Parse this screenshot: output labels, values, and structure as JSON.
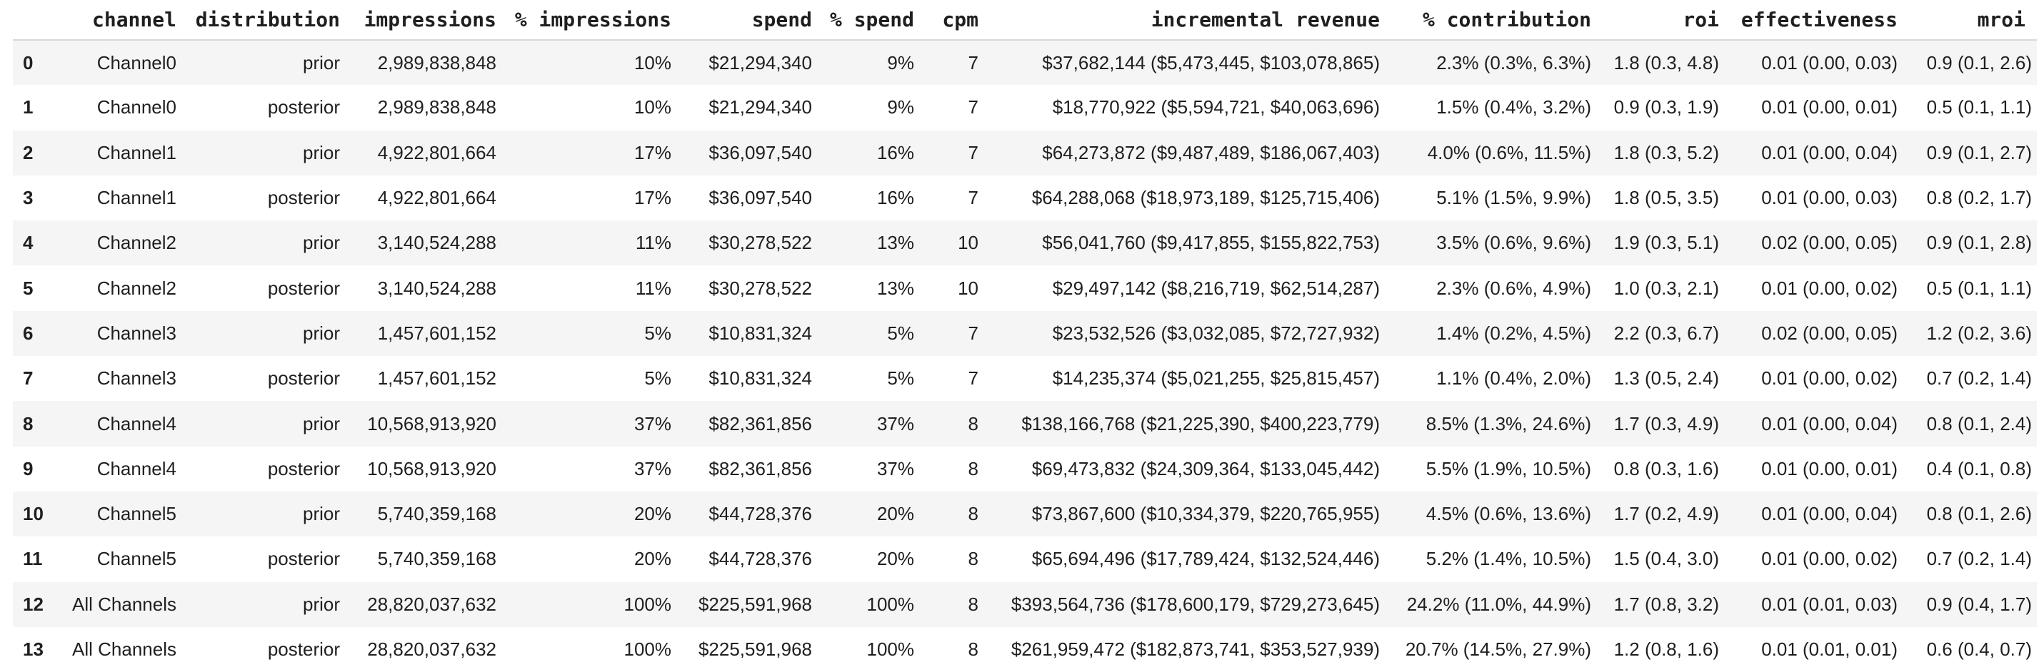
{
  "table": {
    "index_header": "",
    "columns": [
      "channel",
      "distribution",
      "impressions",
      "% impressions",
      "spend",
      "% spend",
      "cpm",
      "incremental revenue",
      "% contribution",
      "roi",
      "effectiveness",
      "mroi"
    ],
    "rows": [
      [
        "0",
        "Channel0",
        "prior",
        "2,989,838,848",
        "10%",
        "$21,294,340",
        "9%",
        "7",
        "$37,682,144 ($5,473,445, $103,078,865)",
        "2.3% (0.3%, 6.3%)",
        "1.8 (0.3, 4.8)",
        "0.01 (0.00, 0.03)",
        "0.9 (0.1, 2.6)"
      ],
      [
        "1",
        "Channel0",
        "posterior",
        "2,989,838,848",
        "10%",
        "$21,294,340",
        "9%",
        "7",
        "$18,770,922 ($5,594,721, $40,063,696)",
        "1.5% (0.4%, 3.2%)",
        "0.9 (0.3, 1.9)",
        "0.01 (0.00, 0.01)",
        "0.5 (0.1, 1.1)"
      ],
      [
        "2",
        "Channel1",
        "prior",
        "4,922,801,664",
        "17%",
        "$36,097,540",
        "16%",
        "7",
        "$64,273,872 ($9,487,489, $186,067,403)",
        "4.0% (0.6%, 11.5%)",
        "1.8 (0.3, 5.2)",
        "0.01 (0.00, 0.04)",
        "0.9 (0.1, 2.7)"
      ],
      [
        "3",
        "Channel1",
        "posterior",
        "4,922,801,664",
        "17%",
        "$36,097,540",
        "16%",
        "7",
        "$64,288,068 ($18,973,189, $125,715,406)",
        "5.1% (1.5%, 9.9%)",
        "1.8 (0.5, 3.5)",
        "0.01 (0.00, 0.03)",
        "0.8 (0.2, 1.7)"
      ],
      [
        "4",
        "Channel2",
        "prior",
        "3,140,524,288",
        "11%",
        "$30,278,522",
        "13%",
        "10",
        "$56,041,760 ($9,417,855, $155,822,753)",
        "3.5% (0.6%, 9.6%)",
        "1.9 (0.3, 5.1)",
        "0.02 (0.00, 0.05)",
        "0.9 (0.1, 2.8)"
      ],
      [
        "5",
        "Channel2",
        "posterior",
        "3,140,524,288",
        "11%",
        "$30,278,522",
        "13%",
        "10",
        "$29,497,142 ($8,216,719, $62,514,287)",
        "2.3% (0.6%, 4.9%)",
        "1.0 (0.3, 2.1)",
        "0.01 (0.00, 0.02)",
        "0.5 (0.1, 1.1)"
      ],
      [
        "6",
        "Channel3",
        "prior",
        "1,457,601,152",
        "5%",
        "$10,831,324",
        "5%",
        "7",
        "$23,532,526 ($3,032,085, $72,727,932)",
        "1.4% (0.2%, 4.5%)",
        "2.2 (0.3, 6.7)",
        "0.02 (0.00, 0.05)",
        "1.2 (0.2, 3.6)"
      ],
      [
        "7",
        "Channel3",
        "posterior",
        "1,457,601,152",
        "5%",
        "$10,831,324",
        "5%",
        "7",
        "$14,235,374 ($5,021,255, $25,815,457)",
        "1.1% (0.4%, 2.0%)",
        "1.3 (0.5, 2.4)",
        "0.01 (0.00, 0.02)",
        "0.7 (0.2, 1.4)"
      ],
      [
        "8",
        "Channel4",
        "prior",
        "10,568,913,920",
        "37%",
        "$82,361,856",
        "37%",
        "8",
        "$138,166,768 ($21,225,390, $400,223,779)",
        "8.5% (1.3%, 24.6%)",
        "1.7 (0.3, 4.9)",
        "0.01 (0.00, 0.04)",
        "0.8 (0.1, 2.4)"
      ],
      [
        "9",
        "Channel4",
        "posterior",
        "10,568,913,920",
        "37%",
        "$82,361,856",
        "37%",
        "8",
        "$69,473,832 ($24,309,364, $133,045,442)",
        "5.5% (1.9%, 10.5%)",
        "0.8 (0.3, 1.6)",
        "0.01 (0.00, 0.01)",
        "0.4 (0.1, 0.8)"
      ],
      [
        "10",
        "Channel5",
        "prior",
        "5,740,359,168",
        "20%",
        "$44,728,376",
        "20%",
        "8",
        "$73,867,600 ($10,334,379, $220,765,955)",
        "4.5% (0.6%, 13.6%)",
        "1.7 (0.2, 4.9)",
        "0.01 (0.00, 0.04)",
        "0.8 (0.1, 2.6)"
      ],
      [
        "11",
        "Channel5",
        "posterior",
        "5,740,359,168",
        "20%",
        "$44,728,376",
        "20%",
        "8",
        "$65,694,496 ($17,789,424, $132,524,446)",
        "5.2% (1.4%, 10.5%)",
        "1.5 (0.4, 3.0)",
        "0.01 (0.00, 0.02)",
        "0.7 (0.2, 1.4)"
      ],
      [
        "12",
        "All Channels",
        "prior",
        "28,820,037,632",
        "100%",
        "$225,591,968",
        "100%",
        "8",
        "$393,564,736 ($178,600,179, $729,273,645)",
        "24.2% (11.0%, 44.9%)",
        "1.7 (0.8, 3.2)",
        "0.01 (0.01, 0.03)",
        "0.9 (0.4, 1.7)"
      ],
      [
        "13",
        "All Channels",
        "posterior",
        "28,820,037,632",
        "100%",
        "$225,591,968",
        "100%",
        "8",
        "$261,959,472 ($182,873,741, $353,527,939)",
        "20.7% (14.5%, 27.9%)",
        "1.2 (0.8, 1.6)",
        "0.01 (0.01, 0.01)",
        "0.6 (0.4, 0.7)"
      ]
    ]
  },
  "colors": {
    "background": "#ffffff",
    "row_stripe": "#f5f5f5",
    "header_border": "#d9d9d9",
    "text": "#1f1f1f"
  }
}
